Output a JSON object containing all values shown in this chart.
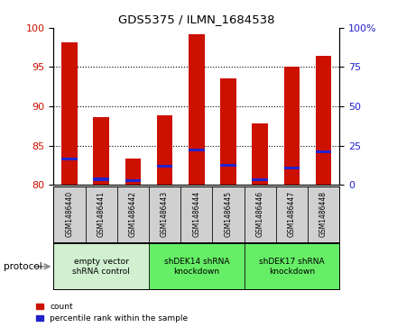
{
  "title": "GDS5375 / ILMN_1684538",
  "samples": [
    "GSM1486440",
    "GSM1486441",
    "GSM1486442",
    "GSM1486443",
    "GSM1486444",
    "GSM1486445",
    "GSM1486446",
    "GSM1486447",
    "GSM1486448"
  ],
  "red_values": [
    98.1,
    88.6,
    83.3,
    88.8,
    99.2,
    93.6,
    87.8,
    95.1,
    96.4
  ],
  "blue_values": [
    83.3,
    80.7,
    80.5,
    82.4,
    84.4,
    82.5,
    80.6,
    82.1,
    84.2
  ],
  "ylim_left": [
    80,
    100
  ],
  "ylim_right": [
    0,
    100
  ],
  "yticks_left": [
    80,
    85,
    90,
    95,
    100
  ],
  "yticks_right": [
    0,
    25,
    50,
    75,
    100
  ],
  "ytick_labels_right": [
    "0",
    "25",
    "50",
    "75",
    "100%"
  ],
  "groups": [
    {
      "label": "empty vector\nshRNA control",
      "start": 0,
      "end": 3,
      "color": "#d0f0d0"
    },
    {
      "label": "shDEK14 shRNA\nknockdown",
      "start": 3,
      "end": 6,
      "color": "#66ee66"
    },
    {
      "label": "shDEK17 shRNA\nknockdown",
      "start": 6,
      "end": 9,
      "color": "#66ee66"
    }
  ],
  "bar_width": 0.5,
  "red_color": "#cc1100",
  "blue_color": "#2222cc",
  "sample_box_color": "#d0d0d0",
  "protocol_label": "protocol"
}
